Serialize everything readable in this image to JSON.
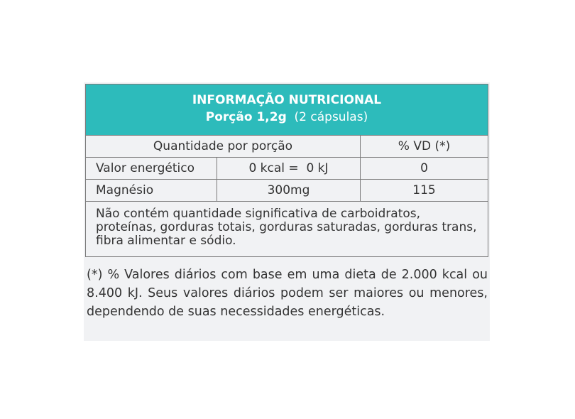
{
  "header": {
    "title": "INFORMAÇÃO NUTRICIONAL",
    "portion_label": "Porção 1,2g",
    "portion_units": "(2 cápsulas)"
  },
  "columns": {
    "quantity": "Quantidade por porção",
    "vd": "% VD (*)"
  },
  "rows": [
    {
      "name": "Valor energético",
      "amount": "0 kcal =  0 kJ",
      "vd": "0"
    },
    {
      "name": "Magnésio",
      "amount": "300mg",
      "vd": "115"
    }
  ],
  "note": "Não contém quantidade significativa de carboidratos, proteínas, gorduras totais, gorduras saturadas, gorduras trans, fibra alimentar e sódio.",
  "footnote": "(*) % Valores diários com base em uma dieta de 2.000 kcal ou 8.400 kJ. Seus valores diários podem ser maiores ou menores,  dependendo de suas necessidades energéticas.",
  "colors": {
    "header": "#2dbbbb",
    "panel": "#f1f2f4"
  }
}
